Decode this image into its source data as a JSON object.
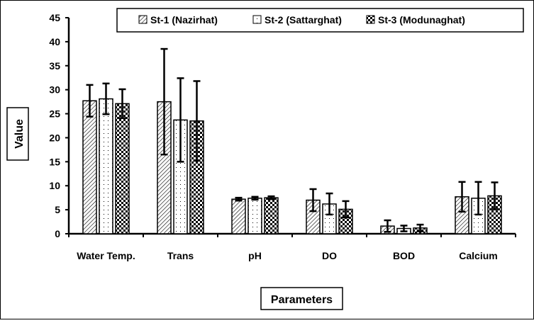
{
  "chart_data": {
    "type": "bar",
    "title": "",
    "xlabel": "Parameters",
    "ylabel": "Value",
    "ylim": [
      0,
      45
    ],
    "yticks": [
      0,
      5,
      10,
      15,
      20,
      25,
      30,
      35,
      40,
      45
    ],
    "grid": false,
    "legend_position": "top-right",
    "categories": [
      "Water Temp.",
      "Trans",
      "pH",
      "DO",
      "BOD",
      "Calcium"
    ],
    "series": [
      {
        "name": "St-1 (Nazirhat)",
        "pattern": "diagonal-hatch",
        "values": [
          27.7,
          27.5,
          7.2,
          7.0,
          1.6,
          7.7
        ],
        "errors": [
          3.3,
          11.0,
          0.3,
          2.3,
          1.2,
          3.1
        ]
      },
      {
        "name": "St-2 (Sattarghat)",
        "pattern": "dots",
        "values": [
          28.1,
          23.7,
          7.4,
          6.2,
          1.1,
          7.4
        ],
        "errors": [
          3.2,
          8.7,
          0.3,
          2.2,
          0.6,
          3.4
        ]
      },
      {
        "name": "St-3 (Modunaghat)",
        "pattern": "checker",
        "values": [
          27.1,
          23.5,
          7.5,
          5.1,
          1.2,
          7.9
        ],
        "errors": [
          3.0,
          8.3,
          0.3,
          1.7,
          0.7,
          2.8
        ]
      }
    ]
  }
}
